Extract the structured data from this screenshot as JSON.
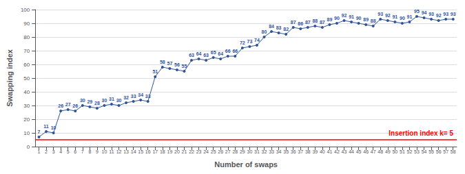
{
  "chart_data": {
    "type": "line",
    "x": [
      1,
      2,
      3,
      4,
      5,
      6,
      7,
      8,
      9,
      10,
      11,
      12,
      13,
      14,
      15,
      16,
      17,
      18,
      19,
      20,
      21,
      22,
      23,
      24,
      25,
      26,
      27,
      28,
      29,
      30,
      31,
      32,
      33,
      34,
      35,
      36,
      37,
      38,
      39,
      40,
      41,
      42,
      43,
      44,
      45,
      46,
      47,
      48,
      49,
      50,
      51,
      52,
      53,
      54,
      55,
      56,
      57,
      58
    ],
    "values": [
      7,
      11,
      10,
      26,
      27,
      26,
      30,
      29,
      28,
      30,
      31,
      30,
      32,
      33,
      34,
      33,
      51,
      58,
      57,
      56,
      55,
      63,
      64,
      63,
      65,
      64,
      66,
      66,
      72,
      73,
      74,
      80,
      84,
      83,
      82,
      87,
      86,
      87,
      88,
      87,
      89,
      90,
      92,
      91,
      90,
      89,
      88,
      93,
      92,
      91,
      90,
      91,
      95,
      94,
      93,
      92,
      93,
      93
    ],
    "color": "#2F5597",
    "marker": "circle",
    "data_labels": true,
    "xlabel": "Number of swaps",
    "ylabel": "Swapping index",
    "xlim": [
      0.5,
      58.5
    ],
    "xticks": [
      1,
      2,
      3,
      4,
      5,
      6,
      7,
      8,
      9,
      10,
      11,
      12,
      13,
      14,
      15,
      16,
      17,
      18,
      19,
      20,
      21,
      22,
      23,
      24,
      25,
      26,
      27,
      28,
      29,
      30,
      31,
      32,
      33,
      34,
      35,
      36,
      37,
      38,
      39,
      40,
      41,
      42,
      43,
      44,
      45,
      46,
      47,
      48,
      49,
      50,
      51,
      52,
      53,
      54,
      55,
      56,
      57,
      58
    ],
    "ylim": [
      0,
      100
    ],
    "yticks": [
      0,
      10,
      20,
      30,
      40,
      50,
      60,
      70,
      80,
      90,
      100
    ],
    "grid": true,
    "annotations": [
      {
        "y": 5,
        "text": "Insertion index k= 5",
        "color": "#FF0000"
      }
    ]
  }
}
